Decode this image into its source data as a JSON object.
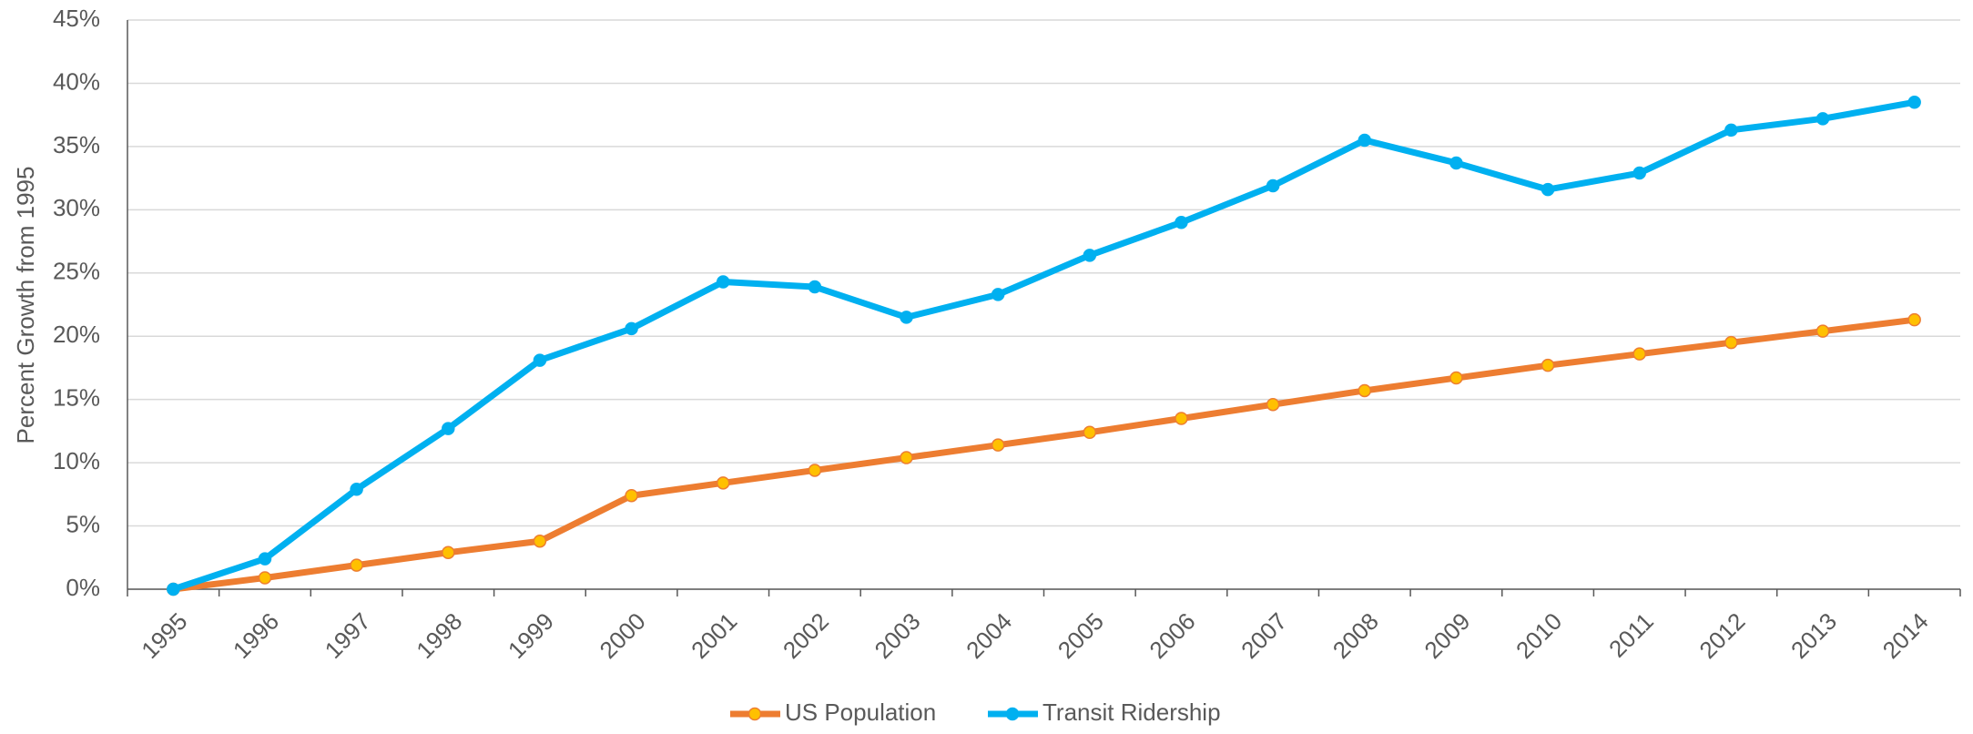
{
  "chart_data": {
    "type": "line",
    "y_label": "Percent Growth from 1995",
    "categories": [
      "1995",
      "1996",
      "1997",
      "1998",
      "1999",
      "2000",
      "2001",
      "2002",
      "2003",
      "2004",
      "2005",
      "2006",
      "2007",
      "2008",
      "2009",
      "2010",
      "2011",
      "2012",
      "2013",
      "2014"
    ],
    "series": [
      {
        "name": "US Population",
        "color": "#ED7D31",
        "marker_color": "#FFC000",
        "values": [
          0,
          0.9,
          1.9,
          2.9,
          3.8,
          7.4,
          8.4,
          9.4,
          10.4,
          11.4,
          12.4,
          13.5,
          14.6,
          15.7,
          16.7,
          17.7,
          18.6,
          19.5,
          20.4,
          21.3
        ]
      },
      {
        "name": "Transit Ridership",
        "color": "#00B0F0",
        "marker_color": "#00B0F0",
        "values": [
          0,
          2.4,
          7.9,
          12.7,
          18.1,
          20.6,
          24.3,
          23.9,
          21.5,
          23.3,
          26.4,
          29.0,
          31.9,
          35.5,
          33.7,
          31.6,
          32.9,
          36.3,
          37.2,
          38.5
        ]
      }
    ],
    "ylim": [
      0,
      45
    ],
    "yticks": [
      {
        "value": 0,
        "label": "0%"
      },
      {
        "value": 5,
        "label": "5%"
      },
      {
        "value": 10,
        "label": "10%"
      },
      {
        "value": 15,
        "label": "15%"
      },
      {
        "value": 20,
        "label": "20%"
      },
      {
        "value": 25,
        "label": "25%"
      },
      {
        "value": 30,
        "label": "30%"
      },
      {
        "value": 35,
        "label": "35%"
      },
      {
        "value": 40,
        "label": "40%"
      },
      {
        "value": 45,
        "label": "45%"
      }
    ],
    "grid": true,
    "legend": "bottom"
  }
}
